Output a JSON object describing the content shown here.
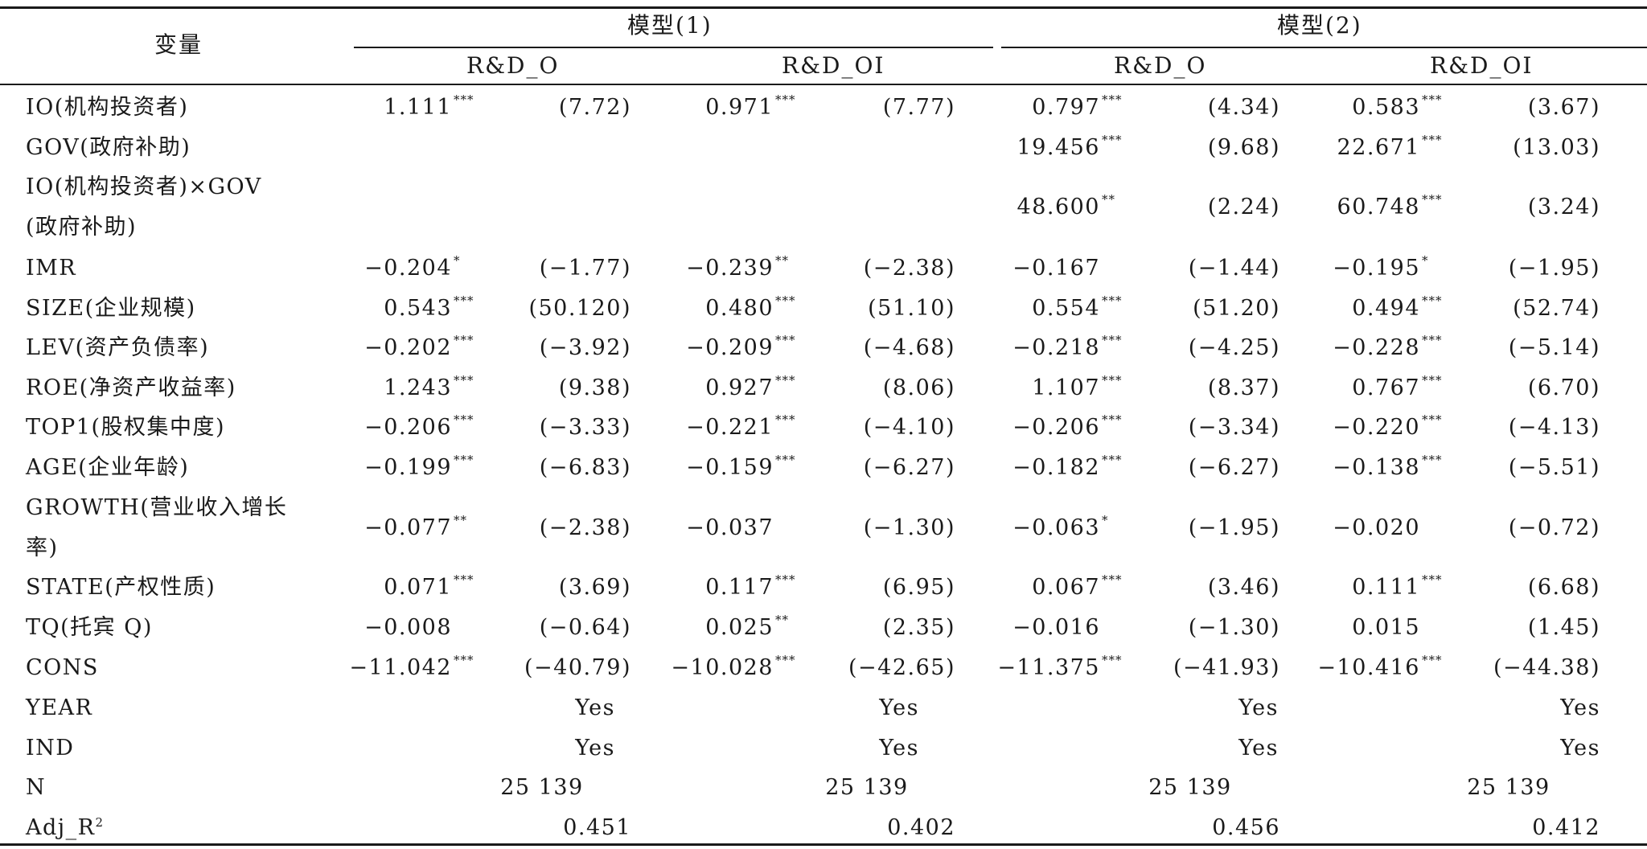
{
  "header": {
    "variable_label": "变量",
    "models": [
      "模型(1)",
      "模型(2)"
    ],
    "subcolumns": [
      "R&D_O",
      "R&D_OI",
      "R&D_O",
      "R&D_OI"
    ]
  },
  "rows": [
    {
      "label": [
        "IO(机构投资者)"
      ],
      "cells": [
        [
          "1.111",
          "***",
          "(7.72)"
        ],
        [
          "0.971",
          "***",
          "(7.77)"
        ],
        [
          "0.797",
          "***",
          "(4.34)"
        ],
        [
          "0.583",
          "***",
          "(3.67)"
        ]
      ]
    },
    {
      "label": [
        "GOV(政府补助)"
      ],
      "cells": [
        null,
        null,
        [
          "19.456",
          "***",
          "(9.68)"
        ],
        [
          "22.671",
          "***",
          "(13.03)"
        ]
      ]
    },
    {
      "label": [
        "IO(机构投资者)×GOV",
        "(政府补助)"
      ],
      "cells": [
        null,
        null,
        [
          "48.600",
          "**",
          "(2.24)"
        ],
        [
          "60.748",
          "***",
          "(3.24)"
        ]
      ]
    },
    {
      "label": [
        "IMR"
      ],
      "cells": [
        [
          "−0.204",
          "*",
          "(−1.77)"
        ],
        [
          "−0.239",
          "**",
          "(−2.38)"
        ],
        [
          "−0.167",
          "",
          "(−1.44)"
        ],
        [
          "−0.195",
          "*",
          "(−1.95)"
        ]
      ]
    },
    {
      "label": [
        "SIZE(企业规模)"
      ],
      "cells": [
        [
          "0.543",
          "***",
          "(50.120)"
        ],
        [
          "0.480",
          "***",
          "(51.10)"
        ],
        [
          "0.554",
          "***",
          "(51.20)"
        ],
        [
          "0.494",
          "***",
          "(52.74)"
        ]
      ]
    },
    {
      "label": [
        "LEV(资产负债率)"
      ],
      "cells": [
        [
          "−0.202",
          "***",
          "(−3.92)"
        ],
        [
          "−0.209",
          "***",
          "(−4.68)"
        ],
        [
          "−0.218",
          "***",
          "(−4.25)"
        ],
        [
          "−0.228",
          "***",
          "(−5.14)"
        ]
      ]
    },
    {
      "label": [
        "ROE(净资产收益率)"
      ],
      "cells": [
        [
          "1.243",
          "***",
          "(9.38)"
        ],
        [
          "0.927",
          "***",
          "(8.06)"
        ],
        [
          "1.107",
          "***",
          "(8.37)"
        ],
        [
          "0.767",
          "***",
          "(6.70)"
        ]
      ]
    },
    {
      "label": [
        "TOP1(股权集中度)"
      ],
      "cells": [
        [
          "−0.206",
          "***",
          "(−3.33)"
        ],
        [
          "−0.221",
          "***",
          "(−4.10)"
        ],
        [
          "−0.206",
          "***",
          "(−3.34)"
        ],
        [
          "−0.220",
          "***",
          "(−4.13)"
        ]
      ]
    },
    {
      "label": [
        "AGE(企业年龄)"
      ],
      "cells": [
        [
          "−0.199",
          "***",
          "(−6.83)"
        ],
        [
          "−0.159",
          "***",
          "(−6.27)"
        ],
        [
          "−0.182",
          "***",
          "(−6.27)"
        ],
        [
          "−0.138",
          "***",
          "(−5.51)"
        ]
      ]
    },
    {
      "label": [
        "GROWTH(营业收入增长",
        "率)"
      ],
      "cells": [
        [
          "−0.077",
          "**",
          "(−2.38)"
        ],
        [
          "−0.037",
          "",
          "(−1.30)"
        ],
        [
          "−0.063",
          "*",
          "(−1.95)"
        ],
        [
          "−0.020",
          "",
          "(−0.72)"
        ]
      ]
    },
    {
      "label": [
        "STATE(产权性质)"
      ],
      "cells": [
        [
          "0.071",
          "***",
          "(3.69)"
        ],
        [
          "0.117",
          "***",
          "(6.95)"
        ],
        [
          "0.067",
          "***",
          "(3.46)"
        ],
        [
          "0.111",
          "***",
          "(6.68)"
        ]
      ]
    },
    {
      "label": [
        "TQ(托宾 Q)"
      ],
      "cells": [
        [
          "−0.008",
          "",
          "(−0.64)"
        ],
        [
          "0.025",
          "**",
          "(2.35)"
        ],
        [
          "−0.016",
          "",
          "(−1.30)"
        ],
        [
          "0.015",
          "",
          "(1.45)"
        ]
      ]
    },
    {
      "label": [
        "CONS"
      ],
      "cells": [
        [
          "−11.042",
          "***",
          "(−40.79)"
        ],
        [
          "−10.028",
          "***",
          "(−42.65)"
        ],
        [
          "−11.375",
          "***",
          "(−41.93)"
        ],
        [
          "−10.416",
          "***",
          "(−44.38)"
        ]
      ]
    }
  ],
  "summary": [
    {
      "label": "YEAR",
      "values": [
        "Yes",
        "Yes",
        "Yes",
        "Yes"
      ]
    },
    {
      "label": "IND",
      "values": [
        "Yes",
        "Yes",
        "Yes",
        "Yes"
      ]
    },
    {
      "label": "N",
      "values": [
        "25 139",
        "25 139",
        "25 139",
        "25 139"
      ]
    }
  ],
  "adj_r2": {
    "label_base": "Adj_R",
    "label_sup": "2",
    "values": [
      "0.451",
      "0.402",
      "0.456",
      "0.412"
    ]
  }
}
